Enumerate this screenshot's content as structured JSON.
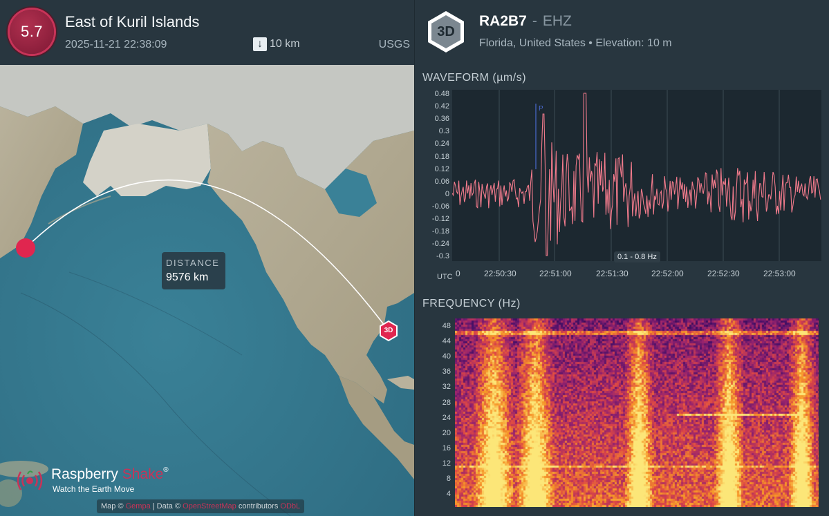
{
  "event": {
    "magnitude": "5.7",
    "title": "East of Kuril Islands",
    "datetime": "2025-11-21 22:38:09",
    "depth": "10 km",
    "source": "USGS",
    "colors": {
      "magnitude_badge": "#9c2346",
      "accent": "#c83358"
    }
  },
  "map": {
    "distance_label": "DISTANCE",
    "distance_value": "9576 km",
    "station_marker_label": "3D",
    "brand": {
      "name_part1": "Raspberry ",
      "name_part2": "Shake",
      "registered": "®",
      "tagline": "Watch the Earth Move"
    },
    "attribution": {
      "prefix": "Map © ",
      "link1": "Gempa",
      "middle": " | Data © ",
      "link2": "OpenStreetMap",
      "suffix": " contributors ",
      "link3": "ODbL"
    }
  },
  "station": {
    "badge": "3D",
    "code": "RA2B7",
    "separator": "-",
    "channel": "EHZ",
    "location": "Florida, United States • Elevation: 10 m"
  },
  "waveform": {
    "title": "WAVEFORM  (µm/s)",
    "y_ticks": [
      "0.48",
      "0.42",
      "0.36",
      "0.3",
      "0.24",
      "0.18",
      "0.12",
      "0.06",
      "0",
      "-0.06",
      "-0.12",
      "-0.18",
      "-0.24",
      "-0.3"
    ],
    "x_ticks": [
      "0",
      "22:50:30",
      "22:51:00",
      "22:51:30",
      "22:52:00",
      "22:52:30",
      "22:53:00"
    ],
    "x_axis_label": "UTC",
    "p_marker": "P",
    "filter_band": "0.1 - 0.8 Hz",
    "trace_color": "#f27b8c"
  },
  "frequency": {
    "title": "FREQUENCY  (Hz)",
    "y_ticks": [
      "48",
      "44",
      "40",
      "36",
      "32",
      "28",
      "24",
      "20",
      "16",
      "12",
      "8",
      "4"
    ]
  }
}
